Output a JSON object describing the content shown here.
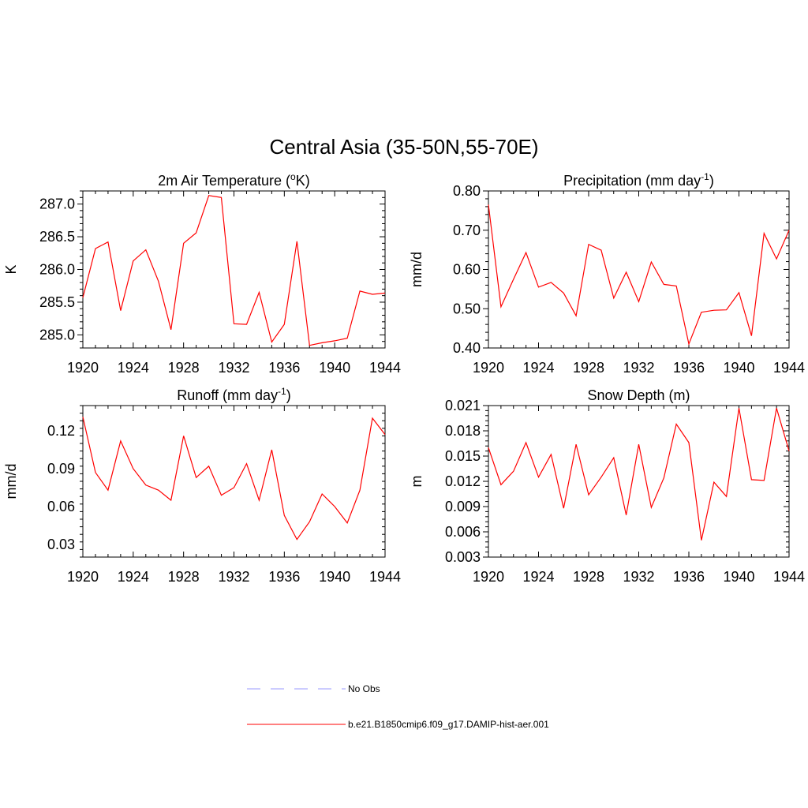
{
  "figure": {
    "title": "Central Asia (35-50N,55-70E)"
  },
  "legend": {
    "items": [
      {
        "label": "No Obs",
        "color": "#9999ff",
        "style": "dashed"
      },
      {
        "label": "b.e21.B1850cmip6.f09_g17.DAMIP-hist-aer.001",
        "color": "#ff0000",
        "style": "solid"
      }
    ]
  },
  "chart_data": [
    {
      "type": "line",
      "title_parts": [
        "2m Air Temperature (",
        "o",
        "K)"
      ],
      "ylabel": "K",
      "xlim": [
        1920,
        1944
      ],
      "ylim": [
        284.8,
        287.2
      ],
      "xticks": [
        1920,
        1924,
        1928,
        1932,
        1936,
        1940,
        1944
      ],
      "yticks": [
        285.0,
        285.5,
        286.0,
        286.5,
        287.0
      ],
      "ytick_labels": [
        "285.0",
        "285.5",
        "286.0",
        "286.5",
        "287.0"
      ],
      "series": [
        {
          "color": "#ff0000",
          "x": [
            1920,
            1921,
            1922,
            1923,
            1924,
            1925,
            1926,
            1927,
            1928,
            1929,
            1930,
            1931,
            1932,
            1933,
            1934,
            1935,
            1936,
            1937,
            1938,
            1939,
            1940,
            1941,
            1942,
            1943,
            1944
          ],
          "values": [
            285.57,
            286.32,
            286.42,
            285.37,
            286.13,
            286.3,
            285.82,
            285.08,
            286.4,
            286.56,
            287.13,
            287.1,
            285.17,
            285.16,
            285.65,
            284.89,
            285.16,
            286.43,
            284.84,
            284.88,
            284.91,
            284.95,
            285.67,
            285.62,
            285.64
          ]
        }
      ]
    },
    {
      "type": "line",
      "title_parts": [
        "Precipitation (mm day",
        "-1",
        ")"
      ],
      "ylabel": "mm/d",
      "xlim": [
        1920,
        1944
      ],
      "ylim": [
        0.4,
        0.8
      ],
      "xticks": [
        1920,
        1924,
        1928,
        1932,
        1936,
        1940,
        1944
      ],
      "yticks": [
        0.4,
        0.5,
        0.6,
        0.7,
        0.8
      ],
      "ytick_labels": [
        "0.40",
        "0.50",
        "0.60",
        "0.70",
        "0.80"
      ],
      "series": [
        {
          "color": "#ff0000",
          "x": [
            1920,
            1921,
            1922,
            1923,
            1924,
            1925,
            1926,
            1927,
            1928,
            1929,
            1930,
            1931,
            1932,
            1933,
            1934,
            1935,
            1936,
            1937,
            1938,
            1939,
            1940,
            1941,
            1942,
            1943,
            1944
          ],
          "values": [
            0.765,
            0.505,
            0.575,
            0.643,
            0.555,
            0.567,
            0.54,
            0.482,
            0.664,
            0.649,
            0.527,
            0.593,
            0.518,
            0.619,
            0.562,
            0.558,
            0.41,
            0.491,
            0.496,
            0.497,
            0.541,
            0.431,
            0.692,
            0.627,
            0.7
          ]
        }
      ]
    },
    {
      "type": "line",
      "title_parts": [
        "Runoff (mm day",
        "-1",
        ")"
      ],
      "ylabel": "mm/d",
      "xlim": [
        1920,
        1944
      ],
      "ylim": [
        0.02,
        0.14
      ],
      "xticks": [
        1920,
        1924,
        1928,
        1932,
        1936,
        1940,
        1944
      ],
      "yticks": [
        0.03,
        0.06,
        0.09,
        0.12
      ],
      "ytick_labels": [
        "0.03",
        "0.06",
        "0.09",
        "0.12"
      ],
      "series": [
        {
          "color": "#ff0000",
          "x": [
            1920,
            1921,
            1922,
            1923,
            1924,
            1925,
            1926,
            1927,
            1928,
            1929,
            1930,
            1931,
            1932,
            1933,
            1934,
            1935,
            1936,
            1937,
            1938,
            1939,
            1940,
            1941,
            1942,
            1943,
            1944
          ],
          "values": [
            0.131,
            0.087,
            0.073,
            0.112,
            0.09,
            0.077,
            0.073,
            0.065,
            0.116,
            0.083,
            0.092,
            0.069,
            0.075,
            0.094,
            0.065,
            0.105,
            0.053,
            0.034,
            0.048,
            0.07,
            0.06,
            0.047,
            0.073,
            0.13,
            0.117
          ]
        }
      ]
    },
    {
      "type": "line",
      "title_parts": [
        "Snow Depth (m)"
      ],
      "ylabel": "m",
      "xlim": [
        1920,
        1944
      ],
      "ylim": [
        0.003,
        0.021
      ],
      "xticks": [
        1920,
        1924,
        1928,
        1932,
        1936,
        1940,
        1944
      ],
      "yticks": [
        0.003,
        0.006,
        0.009,
        0.012,
        0.015,
        0.018,
        0.021
      ],
      "ytick_labels": [
        "0.003",
        "0.006",
        "0.009",
        "0.012",
        "0.015",
        "0.018",
        "0.021"
      ],
      "series": [
        {
          "color": "#ff0000",
          "x": [
            1920,
            1921,
            1922,
            1923,
            1924,
            1925,
            1926,
            1927,
            1928,
            1929,
            1930,
            1931,
            1932,
            1933,
            1934,
            1935,
            1936,
            1937,
            1938,
            1939,
            1940,
            1941,
            1942,
            1943,
            1944
          ],
          "values": [
            0.016,
            0.0116,
            0.0132,
            0.0166,
            0.0125,
            0.0152,
            0.0088,
            0.0164,
            0.0104,
            0.0125,
            0.0148,
            0.008,
            0.0164,
            0.0089,
            0.0124,
            0.0188,
            0.0166,
            0.005,
            0.0119,
            0.0102,
            0.0207,
            0.0122,
            0.0121,
            0.0207,
            0.0156
          ]
        }
      ]
    }
  ]
}
